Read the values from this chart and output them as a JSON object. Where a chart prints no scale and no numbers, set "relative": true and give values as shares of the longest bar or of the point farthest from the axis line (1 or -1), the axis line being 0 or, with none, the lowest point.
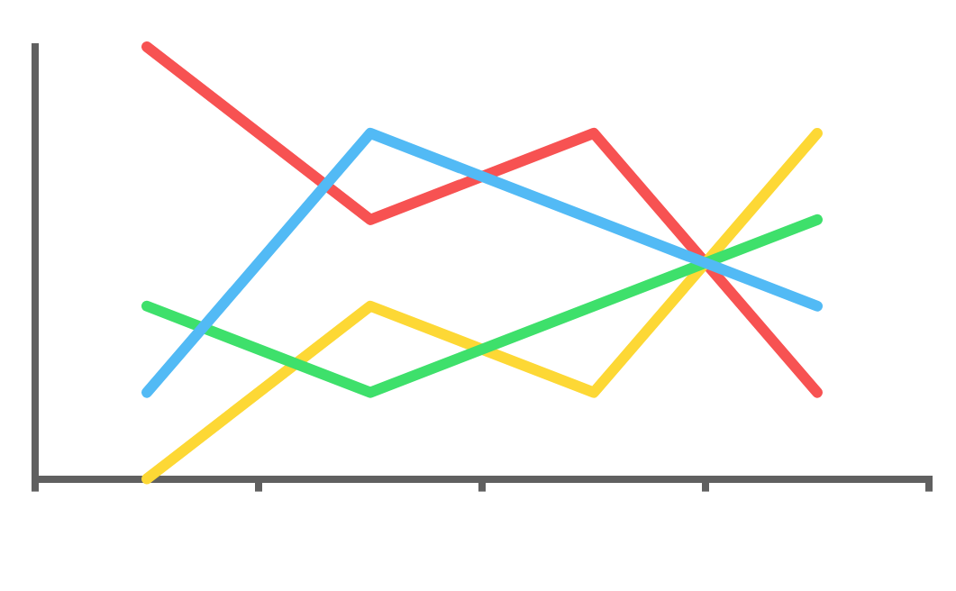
{
  "chart_data": {
    "type": "line",
    "relative": true,
    "categories": [
      null,
      null,
      null,
      null
    ],
    "legend": false,
    "grid": false,
    "marker": "none",
    "line_style": "solid",
    "series": [
      {
        "color": "#52baf5",
        "values": [
          0.2,
          0.8,
          0.6,
          0.4
        ]
      },
      {
        "color": "#3ee06b",
        "values": [
          0.4,
          0.2,
          0.4,
          0.6
        ]
      },
      {
        "color": "#fdd835",
        "values": [
          0,
          0.4,
          0.2,
          0.8
        ]
      },
      {
        "color": "#f75252",
        "values": [
          1,
          0.6,
          0.8,
          0.2
        ]
      }
    ]
  }
}
